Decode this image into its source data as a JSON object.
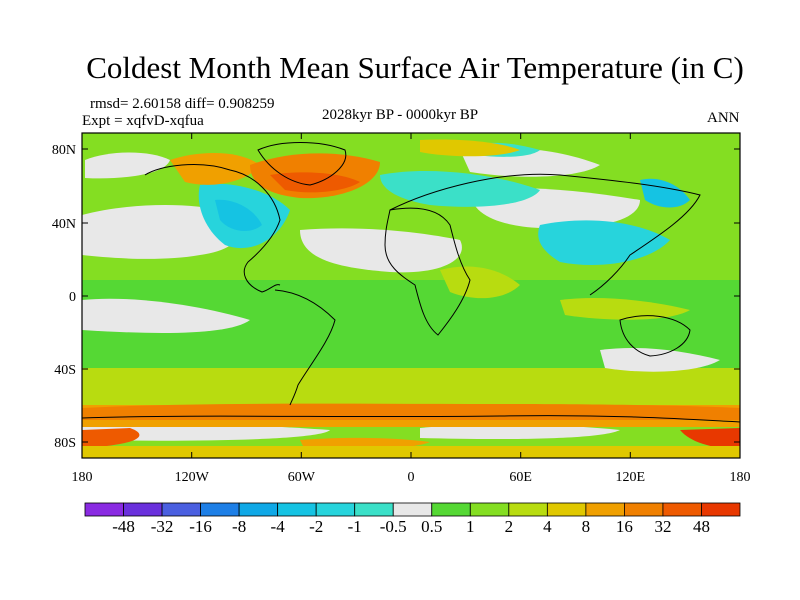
{
  "title": "Coldest Month Mean Surface Air Temperature (in C)",
  "rmsd_line": "rmsd= 2.60158 diff= 0.908259",
  "expt_line": "Expt = xqfvD-xqfua",
  "period": "2028kyr BP - 0000kyr BP",
  "season": "ANN",
  "lat_ticks": [
    "80N",
    "40N",
    "0",
    "40S",
    "80S"
  ],
  "lon_ticks": [
    "180",
    "120W",
    "60W",
    "0",
    "60E",
    "120E",
    "180"
  ],
  "colorbar": {
    "labels": [
      "-48",
      "-32",
      "-16",
      "-8",
      "-4",
      "-2",
      "-1",
      "-0.5",
      "0.5",
      "1",
      "2",
      "4",
      "8",
      "16",
      "32",
      "48"
    ],
    "colors": [
      "#8a2be2",
      "#6a30dc",
      "#4a5fe0",
      "#1e7fe6",
      "#0fa8e6",
      "#15c3e3",
      "#27d4dc",
      "#3be0c8",
      "#e8e8e8",
      "#55d834",
      "#84de22",
      "#b8dc10",
      "#e0c800",
      "#f0a000",
      "#f08000",
      "#ee5a00",
      "#e83800"
    ]
  }
}
